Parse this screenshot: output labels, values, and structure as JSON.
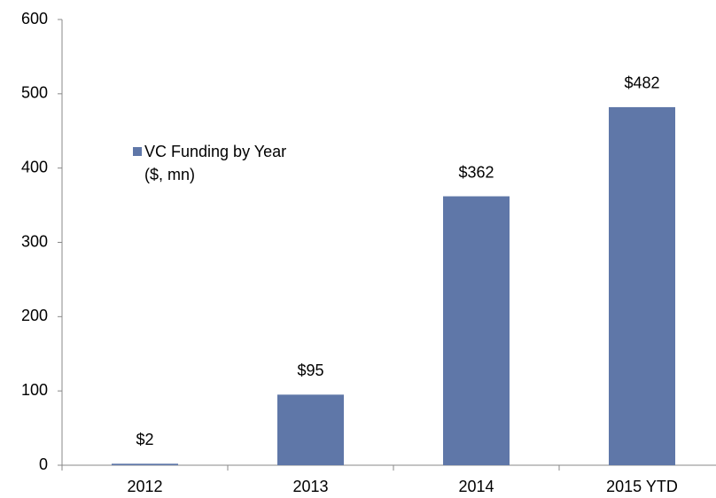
{
  "chart_data": {
    "type": "bar",
    "categories": [
      "2012",
      "2013",
      "2014",
      "2015 YTD"
    ],
    "series": [
      {
        "name": "VC Funding by Year ($, mn)",
        "color": "#5f77a8",
        "values": [
          2,
          95,
          362,
          482
        ],
        "value_labels": [
          "$2",
          "$95",
          "$362",
          "$482"
        ]
      }
    ],
    "ylim": [
      0,
      600
    ],
    "yticks": [
      0,
      100,
      200,
      300,
      400,
      500,
      600
    ],
    "grid": false,
    "legend": "upper left"
  }
}
